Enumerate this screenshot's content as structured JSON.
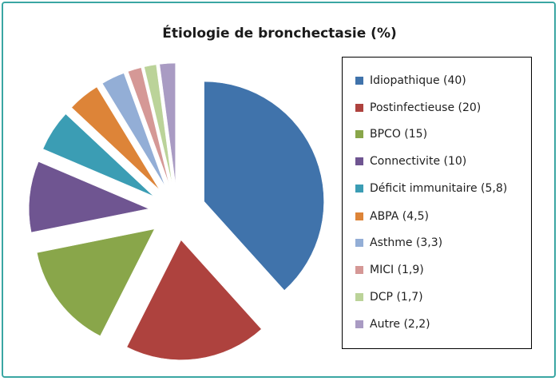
{
  "chart_data": {
    "type": "pie",
    "title": "Étiologie de bronchectasie (%)",
    "exploded": true,
    "legend_position": "right",
    "series": [
      {
        "label": "Idiopathique (40)",
        "value": 40,
        "color": "#4073ab"
      },
      {
        "label": "Postinfectieuse (20)",
        "value": 20,
        "color": "#ae423e"
      },
      {
        "label": "BPCO (15)",
        "value": 15,
        "color": "#89a64a"
      },
      {
        "label": "Connectivite (10)",
        "value": 10,
        "color": "#6f5591"
      },
      {
        "label": "Déficit immunitaire (5,8)",
        "value": 5.8,
        "color": "#3b9db4"
      },
      {
        "label": "ABPA (4,5)",
        "value": 4.5,
        "color": "#dd8438"
      },
      {
        "label": "Asthme (3,3)",
        "value": 3.3,
        "color": "#93aed6"
      },
      {
        "label": "MICI (1,9)",
        "value": 1.9,
        "color": "#d59896"
      },
      {
        "label": "DCP (1,7)",
        "value": 1.7,
        "color": "#bbd399"
      },
      {
        "label": "Autre (2,2)",
        "value": 2.2,
        "color": "#a99bc3"
      }
    ]
  }
}
